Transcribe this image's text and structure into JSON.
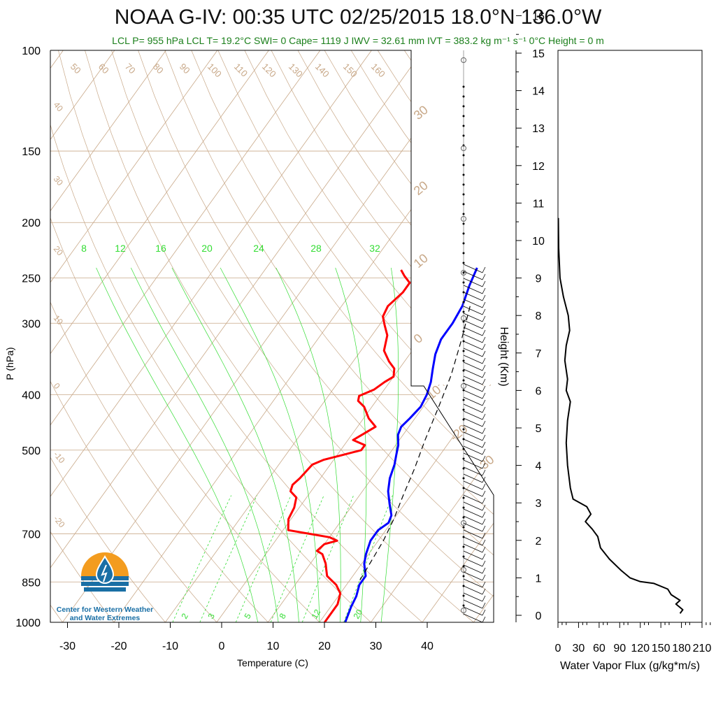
{
  "title": "NOAA G-IV: 00:35 UTC 02/25/2015  18.0°N 136.0°W",
  "subtitle": "LCL P= 955 hPa  LCL T= 19.2°C  SWI= 0  Cape= 1119 J  IWV = 32.61 mm  IVT = 383.2 kg m⁻¹ s⁻¹  0°C Height = 0 m",
  "logo_text": [
    "Center for Western Weather",
    "and Water Extremes"
  ],
  "colors": {
    "temperature": "#ff0000",
    "dewpoint": "#0000ff",
    "isotherm": "#c8a888",
    "mixing_ratio": "#33dd33",
    "parcel": "#000000",
    "logo_orange": "#f39c1f",
    "logo_blue": "#1a6fa5"
  },
  "chart_data": [
    {
      "type": "line",
      "name": "skew-t",
      "xlabel": "Temperature (C)",
      "ylabel": "P (hPa)",
      "x_ticks": [
        "-30",
        "-20",
        "-10",
        "0",
        "10",
        "20",
        "30",
        "40"
      ],
      "y_ticks": [
        "100",
        "150",
        "200",
        "250",
        "300",
        "400",
        "500",
        "700",
        "850",
        "1000"
      ],
      "y_tick_values": [
        100,
        150,
        200,
        250,
        300,
        400,
        500,
        700,
        850,
        1000
      ],
      "xlim": [
        -34,
        47
      ],
      "ylim": [
        1000,
        100
      ],
      "y_scale": "log",
      "isotherm_labels": [
        "50",
        "60",
        "70",
        "80",
        "90",
        "100",
        "110",
        "120",
        "130",
        "140",
        "150",
        "160"
      ],
      "left_labels": [
        "40",
        "30",
        "20",
        "10",
        "0",
        "-10",
        "-20"
      ],
      "right_labels": [
        "30",
        "20",
        "10",
        "0",
        "-10",
        "-20",
        "-30"
      ],
      "mixing_ratio_labels_top": [
        "8",
        "12",
        "16",
        "20",
        "24",
        "28",
        "32"
      ],
      "mixing_ratio_labels_bottom": [
        "2",
        "3",
        "5",
        "8",
        "12",
        "20"
      ],
      "series": [
        {
          "name": "temperature",
          "points": [
            [
              -13.5,
              242
            ],
            [
              -12,
              248
            ],
            [
              -10,
              255
            ],
            [
              -10,
              265
            ],
            [
              -11,
              280
            ],
            [
              -10.5,
              292
            ],
            [
              -9,
              302
            ],
            [
              -7,
              315
            ],
            [
              -5.5,
              335
            ],
            [
              -3,
              350
            ],
            [
              -1,
              360
            ],
            [
              0,
              372
            ],
            [
              -1,
              380
            ],
            [
              -2,
              392
            ],
            [
              -4,
              402
            ],
            [
              -3.5,
              410
            ],
            [
              -1.5,
              420
            ],
            [
              1,
              440
            ],
            [
              3.5,
              455
            ],
            [
              2,
              470
            ],
            [
              1,
              480
            ],
            [
              4,
              490
            ],
            [
              4,
              500
            ],
            [
              1,
              510
            ],
            [
              -2,
              520
            ],
            [
              -3.5,
              530
            ],
            [
              -4,
              560
            ],
            [
              -4.5,
              575
            ],
            [
              -4,
              590
            ],
            [
              -2,
              605
            ],
            [
              -1,
              630
            ],
            [
              -0.5,
              660
            ],
            [
              1,
              690
            ],
            [
              10,
              710
            ],
            [
              12,
              720
            ],
            [
              10,
              730
            ],
            [
              9.5,
              750
            ],
            [
              11,
              760
            ],
            [
              13,
              790
            ],
            [
              14,
              810
            ],
            [
              15,
              830
            ],
            [
              18,
              860
            ],
            [
              20,
              890
            ],
            [
              21,
              930
            ],
            [
              21,
              1000
            ]
          ]
        },
        {
          "name": "dewpoint",
          "points": [
            [
              1,
              240
            ],
            [
              2,
              258
            ],
            [
              3.5,
              280
            ],
            [
              4,
              300
            ],
            [
              4,
              320
            ],
            [
              5,
              340
            ],
            [
              6.5,
              360
            ],
            [
              8,
              380
            ],
            [
              9,
              400
            ],
            [
              9.5,
              420
            ],
            [
              9,
              440
            ],
            [
              8.5,
              455
            ],
            [
              9,
              470
            ],
            [
              10.5,
              490
            ],
            [
              11.5,
              510
            ],
            [
              12.5,
              530
            ],
            [
              13.5,
              560
            ],
            [
              15,
              590
            ],
            [
              17,
              620
            ],
            [
              19,
              650
            ],
            [
              19.5,
              670
            ],
            [
              18.5,
              690
            ],
            [
              18.5,
              720
            ],
            [
              19.5,
              760
            ],
            [
              20.5,
              790
            ],
            [
              22.5,
              830
            ],
            [
              22.5,
              860
            ],
            [
              23.5,
              900
            ],
            [
              24,
              940
            ],
            [
              25,
              1000
            ]
          ]
        },
        {
          "name": "parcel",
          "points": [
            [
              5,
              280
            ],
            [
              8,
              320
            ],
            [
              11,
              370
            ],
            [
              13,
              420
            ],
            [
              15,
              480
            ],
            [
              17,
              540
            ],
            [
              18.5,
              600
            ],
            [
              20,
              660
            ],
            [
              21,
              720
            ],
            [
              21.5,
              780
            ],
            [
              22,
              850
            ]
          ]
        }
      ]
    },
    {
      "type": "line",
      "name": "water-vapor-flux",
      "xlabel": "Water Vapor Flux (g/kg*m/s)",
      "ylabel": "Height (Km)",
      "x_ticks": [
        "0",
        "30",
        "60",
        "90",
        "120",
        "150",
        "180",
        "210"
      ],
      "y_ticks": [
        "0",
        "1",
        "2",
        "3",
        "4",
        "5",
        "6",
        "7",
        "8",
        "9",
        "10",
        "11",
        "12",
        "13",
        "14",
        "15",
        "16"
      ],
      "xlim": [
        0,
        210
      ],
      "ylim": [
        0,
        16.3
      ],
      "series": [
        {
          "name": "flux",
          "points": [
            [
              0.5,
              10.6
            ],
            [
              1,
              9.8
            ],
            [
              3,
              9.0
            ],
            [
              8,
              8.5
            ],
            [
              15,
              8.0
            ],
            [
              17,
              7.6
            ],
            [
              12,
              7.2
            ],
            [
              10,
              6.8
            ],
            [
              14,
              6.3
            ],
            [
              12,
              6.0
            ],
            [
              18,
              5.7
            ],
            [
              14,
              5.2
            ],
            [
              12,
              4.6
            ],
            [
              14,
              4.0
            ],
            [
              18,
              3.4
            ],
            [
              22,
              3.1
            ],
            [
              42,
              2.9
            ],
            [
              48,
              2.7
            ],
            [
              40,
              2.5
            ],
            [
              50,
              2.3
            ],
            [
              58,
              2.1
            ],
            [
              62,
              1.8
            ],
            [
              75,
              1.5
            ],
            [
              92,
              1.2
            ],
            [
              105,
              1.0
            ],
            [
              120,
              0.9
            ],
            [
              140,
              0.85
            ],
            [
              160,
              0.7
            ],
            [
              165,
              0.55
            ],
            [
              178,
              0.4
            ],
            [
              172,
              0.3
            ],
            [
              182,
              0.15
            ],
            [
              178,
              0.05
            ]
          ]
        }
      ]
    }
  ]
}
